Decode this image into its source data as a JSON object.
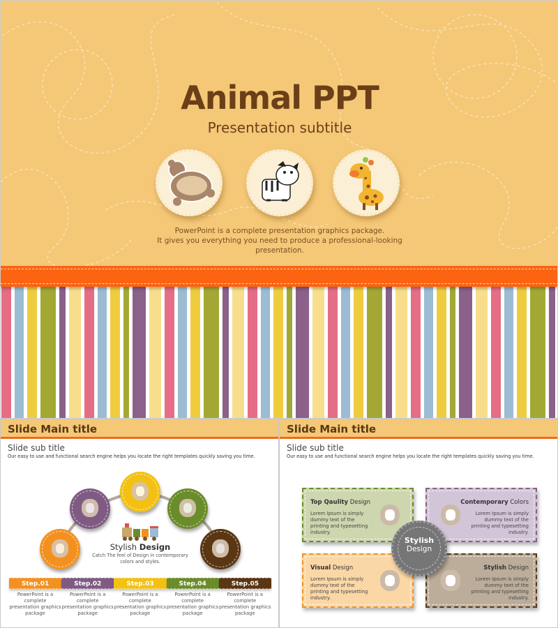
{
  "hero": {
    "title": "Animal PPT",
    "subtitle": "Presentation subtitle",
    "badges": [
      {
        "icon": "teddy-bear-icon"
      },
      {
        "icon": "zebra-icon"
      },
      {
        "icon": "giraffe-icon"
      }
    ],
    "description_lines": [
      "PowerPoint is a complete presentation graphics package.",
      "It gives you everything you need to produce a professional-looking",
      "presentation."
    ],
    "colors": {
      "background": "#f5c878",
      "title": "#6b3f17",
      "ribbon": "#fc6412"
    },
    "stripe_colors": [
      "#e56d85",
      "#9bbcd2",
      "#efcc3e",
      "#a3a834",
      "#8b6089",
      "#f8de8c"
    ]
  },
  "left_slide": {
    "title": "Slide Main title",
    "sub_title": "Slide sub title",
    "description": "Our easy to use and functional search engine helps you locate the right templates quickly saving you time.",
    "center": {
      "title_light": "Stylish",
      "title_bold": "Design",
      "text_lines": [
        "Catch The feel of Design in contemporary",
        "colors and styles."
      ],
      "icon": "toy-train-icon"
    },
    "steps": [
      {
        "label": "Step.01",
        "color": "#f39120",
        "icon": "elephant-icon",
        "text": "PowerPoint is a complete presentation graphics package"
      },
      {
        "label": "Step.02",
        "color": "#7f5b83",
        "icon": "toy-duck-icon",
        "text": "PowerPoint is a complete presentation graphics package"
      },
      {
        "label": "Step.03",
        "color": "#f2c113",
        "icon": "teddy-bear-icon",
        "text": "PowerPoint is a complete presentation graphics package"
      },
      {
        "label": "Step.04",
        "color": "#6b8c2b",
        "icon": "hippo-icon",
        "text": "PowerPoint is a complete presentation graphics package"
      },
      {
        "label": "Step.05",
        "color": "#5a3612",
        "icon": "cow-icon",
        "text": "PowerPoint is a complete presentation graphics package"
      }
    ]
  },
  "right_slide": {
    "title": "Slide Main title",
    "sub_title": "Slide sub title",
    "description": "Our easy to use and functional search engine helps you locate the right templates quickly saving you time.",
    "center_badge": {
      "line1": "Stylish",
      "line2": "Design",
      "color": "#767676"
    },
    "boxes": [
      {
        "bold": "Top Qaulity",
        "light": "Design",
        "text": "Lorem Ipsum is simply dummy text of the printing  and typesetting  industry.",
        "bg": "#cdd6ae",
        "border": "#6b8c2b",
        "icon": "teddy-bear-icon"
      },
      {
        "bold": "Contemporary",
        "light": "Colors",
        "text": "Lorem Ipsum is simply dummy text of the printing  and typesetting  industry.",
        "bg": "#d2c5d8",
        "border": "#8b6089",
        "icon": "hippo-icon"
      },
      {
        "bold": "Visual",
        "light": "Design",
        "text": "Lorem Ipsum is simply dummy text of the printing  and typesetting  industry.",
        "bg": "#fbd7a6",
        "border": "#f39120",
        "icon": "elephant-icon"
      },
      {
        "bold": "Stylish",
        "light": "Design",
        "text": "Lorem Ipsum is simply dummy text of the printing  and typesetting  industry.",
        "bg": "#bcad9b",
        "border": "#5a3612",
        "icon": "cow-icon"
      }
    ]
  }
}
